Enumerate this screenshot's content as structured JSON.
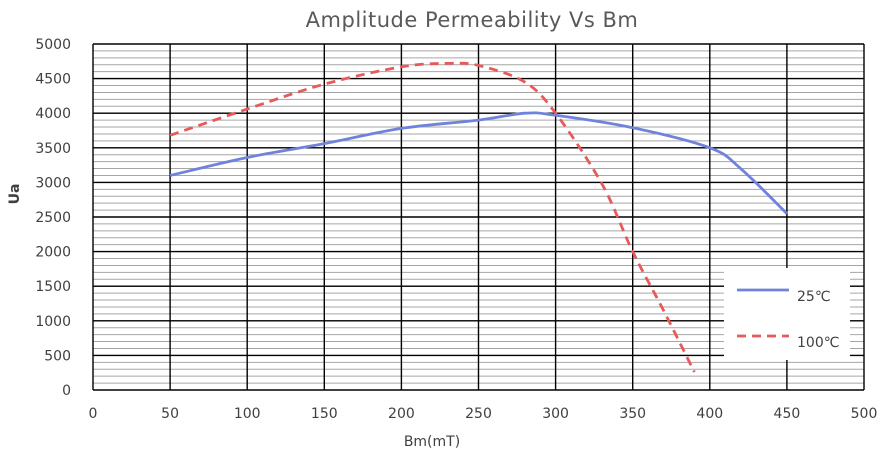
{
  "chart_data": {
    "type": "line",
    "title": "Amplitude Permeability Vs Bm",
    "xlabel": "Bm(mT)",
    "ylabel": "Ua",
    "xlim": [
      0,
      500
    ],
    "ylim": [
      0,
      5000
    ],
    "xticks": [
      0,
      50,
      100,
      150,
      200,
      250,
      300,
      350,
      400,
      450,
      500
    ],
    "yticks": [
      0,
      500,
      1000,
      1500,
      2000,
      2500,
      3000,
      3500,
      4000,
      4500,
      5000
    ],
    "x_tick_labels": [
      "0",
      "50",
      "100",
      "150",
      "200",
      "250",
      "300",
      "350",
      "400",
      "450",
      "500"
    ],
    "y_tick_labels": [
      "0",
      "500",
      "1000",
      "1500",
      "2000",
      "2500",
      "3000",
      "3500",
      "4000",
      "4500",
      "5000"
    ],
    "y_minor_step": 100,
    "grid": true,
    "legend_position": "bottom-right",
    "series": [
      {
        "name": "25℃",
        "color": "#6f83db",
        "style": "solid",
        "x": [
          50,
          100,
          150,
          200,
          250,
          280,
          300,
          350,
          400,
          420,
          450
        ],
        "y": [
          3100,
          3360,
          3560,
          3780,
          3900,
          4000,
          3970,
          3790,
          3500,
          3200,
          2550
        ]
      },
      {
        "name": "100℃",
        "color": "#e8595a",
        "style": "dashed",
        "x": [
          50,
          100,
          150,
          200,
          230,
          250,
          280,
          300,
          330,
          350,
          370,
          390
        ],
        "y": [
          3680,
          4060,
          4420,
          4670,
          4720,
          4690,
          4450,
          4000,
          2980,
          2000,
          1150,
          260
        ]
      }
    ]
  }
}
